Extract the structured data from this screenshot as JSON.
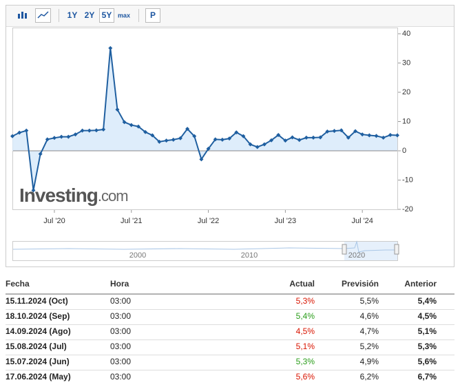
{
  "toolbar": {
    "buttons": [
      "1Y",
      "2Y",
      "5Y",
      "max",
      "P"
    ],
    "active": "5Y"
  },
  "chart_data": {
    "type": "area",
    "categories": [
      null,
      null,
      null,
      null,
      null,
      null,
      "Jul '20",
      null,
      null,
      null,
      null,
      null,
      null,
      null,
      null,
      null,
      null,
      "Jul '21",
      null,
      null,
      null,
      null,
      null,
      null,
      null,
      null,
      null,
      null,
      "Jul '22",
      null,
      null,
      null,
      null,
      null,
      null,
      null,
      null,
      null,
      null,
      "Jul '23",
      null,
      null,
      null,
      null,
      null,
      null,
      null,
      null,
      null,
      null,
      "Jul '24",
      null,
      null,
      null,
      null,
      null
    ],
    "series": [
      {
        "color": "#1f5fa0",
        "fill": "#d6e8fa",
        "values": [
          5.0,
          6.2,
          6.9,
          -13.5,
          -1.1,
          3.9,
          4.4,
          4.8,
          4.8,
          5.6,
          6.9,
          6.9,
          7.0,
          7.3,
          35.1,
          14.1,
          9.8,
          8.8,
          8.3,
          6.4,
          5.3,
          3.1,
          3.5,
          3.8,
          4.3,
          7.5,
          5.0,
          -2.9,
          0.7,
          3.9,
          3.8,
          4.2,
          6.3,
          5.0,
          2.2,
          1.3,
          2.2,
          3.6,
          5.4,
          3.5,
          4.6,
          3.7,
          4.5,
          4.5,
          4.6,
          6.6,
          6.8,
          7.0,
          4.5,
          6.7,
          5.6,
          5.3,
          5.1,
          4.5,
          5.4,
          5.3
        ]
      }
    ],
    "ylim": [
      -20,
      40
    ],
    "yticks": [
      -20,
      -10,
      0,
      10,
      20,
      30,
      40
    ],
    "watermark": [
      "Investing",
      ".com"
    ]
  },
  "navigator": {
    "labels": [
      "2000",
      "2010",
      "2020"
    ]
  },
  "table": {
    "header": [
      "Fecha",
      "Hora",
      "Actual",
      "Previsión",
      "Anterior"
    ],
    "rows": [
      {
        "cells": [
          "15.11.2024 (Oct)",
          "03:00",
          "5,3%",
          "5,5%",
          "5,4%"
        ],
        "actual_color": "#d91400"
      },
      {
        "cells": [
          "18.10.2024 (Sep)",
          "03:00",
          "5,4%",
          "4,6%",
          "4,5%"
        ],
        "actual_color": "#2a9d1a"
      },
      {
        "cells": [
          "14.09.2024 (Ago)",
          "03:00",
          "4,5%",
          "4,7%",
          "5,1%"
        ],
        "actual_color": "#d91400"
      },
      {
        "cells": [
          "15.08.2024 (Jul)",
          "03:00",
          "5,1%",
          "5,2%",
          "5,3%"
        ],
        "actual_color": "#d91400"
      },
      {
        "cells": [
          "15.07.2024 (Jun)",
          "03:00",
          "5,3%",
          "4,9%",
          "5,6%"
        ],
        "actual_color": "#2a9d1a"
      },
      {
        "cells": [
          "17.06.2024 (May)",
          "03:00",
          "5,6%",
          "6,2%",
          "6,7%"
        ],
        "actual_color": "#d91400"
      }
    ]
  }
}
